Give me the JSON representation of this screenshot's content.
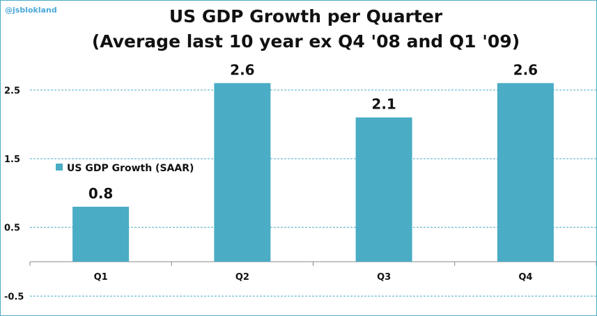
{
  "watermark": "@jsblokland",
  "chart_data": {
    "type": "bar",
    "title": "US GDP Growth per Quarter",
    "subtitle": "(Average last 10 year ex Q4 '08 and Q1 '09)",
    "categories": [
      "Q1",
      "Q2",
      "Q3",
      "Q4"
    ],
    "series": [
      {
        "name": "US GDP Growth (SAAR)",
        "values": [
          0.8,
          2.6,
          2.1,
          2.6
        ]
      }
    ],
    "data_labels": [
      "0.8",
      "2.6",
      "2.1",
      "2.6"
    ],
    "xlabel": "",
    "ylabel": "",
    "ylim": [
      -0.7,
      3.0
    ],
    "yticks": [
      -0.5,
      0.5,
      1.5,
      2.5
    ],
    "ytick_labels": [
      "-0.5",
      "0.5",
      "1.5",
      "2.5"
    ],
    "grid": true,
    "legend": "left-middle",
    "color": "#4aacc5"
  }
}
